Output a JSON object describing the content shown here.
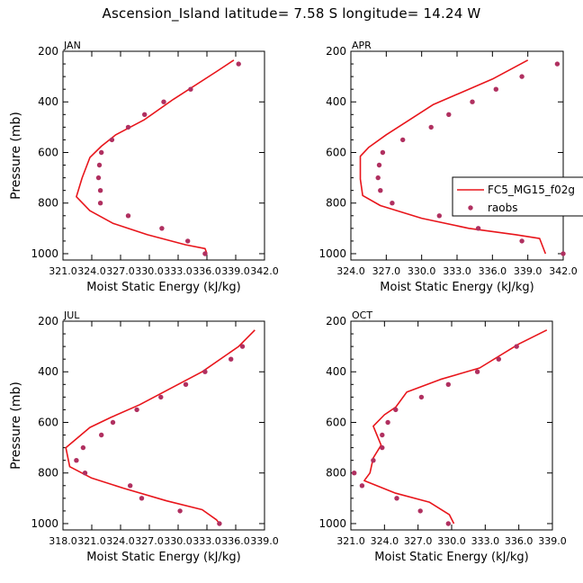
{
  "figure_title": "Ascension_Island  latitude= 7.58 S longitude= 14.24 W",
  "colors": {
    "model": "#e8151b",
    "obs": "#b03060",
    "axis": "#000000"
  },
  "legend": {
    "model_label": "FC5_MG15_f02g",
    "obs_label": "raobs",
    "placement": "right of APR panel, spilling outside"
  },
  "chart_data": [
    {
      "type": "line",
      "title": "JAN",
      "xlabel": "Moist Static Energy (kJ/kg)",
      "ylabel": "Pressure (mb)",
      "xlim": [
        321.0,
        342.0
      ],
      "ylim": [
        200,
        1025
      ],
      "y_inverted": true,
      "xticks": [
        321.0,
        324.0,
        327.0,
        330.0,
        333.0,
        336.0,
        339.0,
        342.0
      ],
      "xtick_labels": [
        "321.0",
        "324.0",
        "327.0",
        "330.0",
        "333.0",
        "336.0",
        "339.0",
        "342.0"
      ],
      "yticks": [
        200,
        400,
        600,
        800,
        1000
      ],
      "ytick_labels": [
        "200",
        "400",
        "600",
        "800",
        "1000"
      ],
      "series": [
        {
          "name": "FC5_MG15_f02g",
          "kind": "line",
          "points": [
            [
              338.8,
              235
            ],
            [
              337.0,
              280
            ],
            [
              332.5,
              390
            ],
            [
              329.5,
              470
            ],
            [
              326.5,
              530
            ],
            [
              325.0,
              575
            ],
            [
              323.8,
              620
            ],
            [
              323.0,
              700
            ],
            [
              322.4,
              775
            ],
            [
              323.8,
              830
            ],
            [
              326.2,
              880
            ],
            [
              329.8,
              925
            ],
            [
              333.8,
              965
            ],
            [
              335.8,
              980
            ],
            [
              336.0,
              1000
            ]
          ]
        },
        {
          "name": "raobs",
          "kind": "markers",
          "points": [
            [
              339.3,
              250
            ],
            [
              334.3,
              350
            ],
            [
              331.5,
              400
            ],
            [
              329.5,
              450
            ],
            [
              327.8,
              500
            ],
            [
              326.1,
              550
            ],
            [
              325.0,
              600
            ],
            [
              324.8,
              650
            ],
            [
              324.7,
              700
            ],
            [
              324.9,
              750
            ],
            [
              324.9,
              800
            ],
            [
              327.8,
              850
            ],
            [
              331.3,
              900
            ],
            [
              334.0,
              950
            ],
            [
              335.8,
              1000
            ]
          ]
        }
      ]
    },
    {
      "type": "line",
      "title": "APR",
      "xlabel": "Moist Static Energy (kJ/kg)",
      "ylabel": "",
      "xlim": [
        324.0,
        342.0
      ],
      "ylim": [
        200,
        1025
      ],
      "y_inverted": true,
      "xticks": [
        324.0,
        327.0,
        330.0,
        333.0,
        336.0,
        339.0,
        342.0
      ],
      "xtick_labels": [
        "324.0",
        "327.0",
        "330.0",
        "333.0",
        "336.0",
        "339.0",
        "342.0"
      ],
      "yticks": [
        200,
        400,
        600,
        800,
        1000
      ],
      "ytick_labels": [
        "200",
        "400",
        "600",
        "800",
        "1000"
      ],
      "series": [
        {
          "name": "FC5_MG15_f02g",
          "kind": "line",
          "points": [
            [
              339.0,
              235
            ],
            [
              336.0,
              310
            ],
            [
              331.0,
              410
            ],
            [
              329.0,
              470
            ],
            [
              327.0,
              530
            ],
            [
              325.5,
              580
            ],
            [
              324.8,
              615
            ],
            [
              324.8,
              705
            ],
            [
              325.0,
              770
            ],
            [
              326.5,
              810
            ],
            [
              330.0,
              860
            ],
            [
              334.0,
              900
            ],
            [
              338.0,
              925
            ],
            [
              340.0,
              940
            ],
            [
              340.5,
              1000
            ]
          ]
        },
        {
          "name": "raobs",
          "kind": "markers",
          "points": [
            [
              341.5,
              250
            ],
            [
              338.5,
              300
            ],
            [
              336.3,
              350
            ],
            [
              334.3,
              400
            ],
            [
              332.3,
              450
            ],
            [
              330.8,
              500
            ],
            [
              328.4,
              550
            ],
            [
              326.7,
              600
            ],
            [
              326.4,
              650
            ],
            [
              326.3,
              700
            ],
            [
              326.5,
              750
            ],
            [
              327.5,
              800
            ],
            [
              331.5,
              850
            ],
            [
              334.8,
              900
            ],
            [
              338.5,
              950
            ],
            [
              342.0,
              1000
            ]
          ]
        }
      ]
    },
    {
      "type": "line",
      "title": "JUL",
      "xlabel": "Moist Static Energy (kJ/kg)",
      "ylabel": "Pressure (mb)",
      "xlim": [
        318.0,
        339.0
      ],
      "ylim": [
        200,
        1025
      ],
      "y_inverted": true,
      "xticks": [
        318.0,
        321.0,
        324.0,
        327.0,
        330.0,
        333.0,
        336.0,
        339.0
      ],
      "xtick_labels": [
        "318.0",
        "321.0",
        "324.0",
        "327.0",
        "330.0",
        "333.0",
        "336.0",
        "339.0"
      ],
      "yticks": [
        200,
        400,
        600,
        800,
        1000
      ],
      "ytick_labels": [
        "200",
        "400",
        "600",
        "800",
        "1000"
      ],
      "series": [
        {
          "name": "FC5_MG15_f02g",
          "kind": "line",
          "points": [
            [
              338.0,
              235
            ],
            [
              336.3,
              300
            ],
            [
              332.5,
              400
            ],
            [
              329.5,
              460
            ],
            [
              326.0,
              530
            ],
            [
              323.0,
              580
            ],
            [
              320.8,
              620
            ],
            [
              318.3,
              700
            ],
            [
              318.7,
              775
            ],
            [
              321.0,
              820
            ],
            [
              324.3,
              860
            ],
            [
              328.8,
              910
            ],
            [
              332.5,
              945
            ],
            [
              334.0,
              985
            ],
            [
              334.3,
              1000
            ]
          ]
        },
        {
          "name": "raobs",
          "kind": "markers",
          "points": [
            [
              336.7,
              300
            ],
            [
              335.5,
              350
            ],
            [
              332.8,
              400
            ],
            [
              330.8,
              450
            ],
            [
              328.2,
              500
            ],
            [
              325.7,
              550
            ],
            [
              323.2,
              600
            ],
            [
              322.0,
              650
            ],
            [
              320.1,
              700
            ],
            [
              319.4,
              750
            ],
            [
              320.3,
              800
            ],
            [
              325.0,
              850
            ],
            [
              326.2,
              900
            ],
            [
              330.2,
              950
            ],
            [
              334.3,
              1000
            ]
          ]
        }
      ]
    },
    {
      "type": "line",
      "title": "OCT",
      "xlabel": "Moist Static Energy (kJ/kg)",
      "ylabel": "",
      "xlim": [
        321.0,
        339.0
      ],
      "ylim": [
        200,
        1025
      ],
      "y_inverted": true,
      "xticks": [
        321.0,
        324.0,
        327.0,
        330.0,
        333.0,
        336.0,
        339.0
      ],
      "xtick_labels": [
        "321.0",
        "324.0",
        "327.0",
        "330.0",
        "333.0",
        "336.0",
        "339.0"
      ],
      "yticks": [
        200,
        400,
        600,
        800,
        1000
      ],
      "ytick_labels": [
        "200",
        "400",
        "600",
        "800",
        "1000"
      ],
      "series": [
        {
          "name": "FC5_MG15_f02g",
          "kind": "line",
          "points": [
            [
              338.5,
              235
            ],
            [
              336.0,
              290
            ],
            [
              332.5,
              385
            ],
            [
              329.0,
              430
            ],
            [
              326.0,
              480
            ],
            [
              325.0,
              540
            ],
            [
              324.0,
              570
            ],
            [
              323.0,
              615
            ],
            [
              323.7,
              690
            ],
            [
              323.0,
              740
            ],
            [
              322.7,
              800
            ],
            [
              322.2,
              830
            ],
            [
              325.0,
              880
            ],
            [
              328.0,
              915
            ],
            [
              329.8,
              965
            ],
            [
              330.2,
              1000
            ]
          ]
        },
        {
          "name": "raobs",
          "kind": "markers",
          "points": [
            [
              335.8,
              300
            ],
            [
              334.2,
              350
            ],
            [
              332.3,
              400
            ],
            [
              329.7,
              450
            ],
            [
              327.3,
              500
            ],
            [
              325.0,
              550
            ],
            [
              324.3,
              600
            ],
            [
              323.8,
              650
            ],
            [
              323.8,
              700
            ],
            [
              323.0,
              750
            ],
            [
              321.3,
              800
            ],
            [
              322.0,
              850
            ],
            [
              325.1,
              900
            ],
            [
              327.2,
              950
            ],
            [
              329.7,
              1000
            ]
          ]
        }
      ]
    }
  ]
}
